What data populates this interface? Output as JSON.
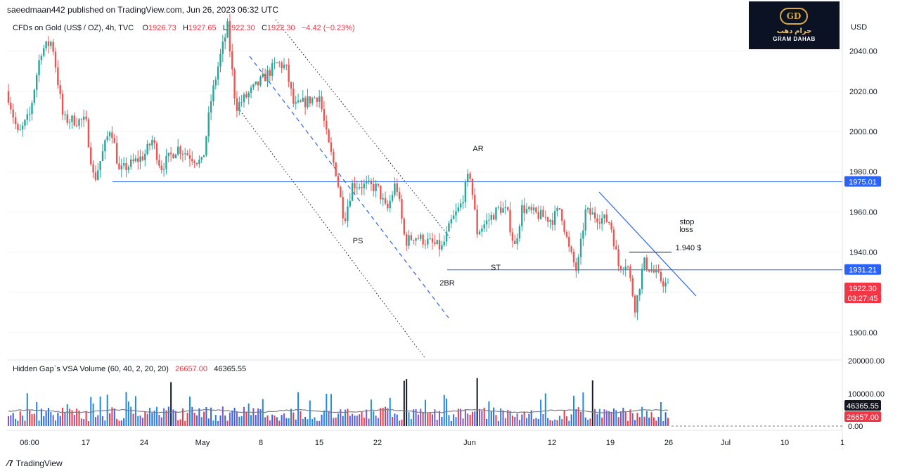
{
  "header": {
    "published": "saeedmaan442 published on TradingView.com, Jun 26, 2023 06:32 UTC"
  },
  "symbol_bar": {
    "name": "CFDs on Gold (US$ / OZ), 4h, TVC",
    "open_label": "O",
    "open": "1926.73",
    "high_label": "H",
    "high": "1927.65",
    "low_label": "L",
    "low": "1922.30",
    "close_label": "C",
    "close": "1922.30",
    "change": "−4.42 (−0.23%)"
  },
  "logo": {
    "emblem": "GD",
    "arabic_text": "جرام دهب",
    "english_text": "GRAM DAHAB"
  },
  "price_axis": {
    "currency": "USD",
    "ticks": [
      "2040.00",
      "2020.00",
      "2000.00",
      "1980.00",
      "1960.00",
      "1940.00",
      "1920.00",
      "1900.00"
    ],
    "tags": [
      {
        "value": "1975.01",
        "color": "#2962ff"
      },
      {
        "value": "1931.21",
        "color": "#2962ff"
      },
      {
        "value": "1922.30",
        "color": "#f23645"
      },
      {
        "value": "03:27:45",
        "color": "#f23645"
      }
    ]
  },
  "volume_panel": {
    "title": "Hidden Gap`s VSA Volume (60, 40, 2, 20, 20)",
    "value_1": "26657.00",
    "value_2": "46365.55",
    "axis_ticks": [
      "200000.00",
      "100000.00",
      "0.00"
    ],
    "tags": [
      {
        "value": "46365.55",
        "color": "#131722"
      },
      {
        "value": "26657.00",
        "color": "#f23645"
      }
    ]
  },
  "time_axis": {
    "labels": [
      "06:00",
      "17",
      "24",
      "May",
      "8",
      "15",
      "22",
      "Jun",
      "12",
      "19",
      "26",
      "Jul",
      "10",
      "1"
    ]
  },
  "annotations": {
    "AR": "AR",
    "PS": "PS",
    "ST": "ST",
    "BR": "2BR",
    "stop_loss_line1": "stop",
    "stop_loss_line2": "loss",
    "stop_price": "1.940 $"
  },
  "footer": {
    "brand": "TradingView"
  },
  "colors": {
    "up": "#26a69a",
    "down": "#ef5350",
    "hline": "#2962ff",
    "trend": "#2962ff",
    "vol_blue": "#2962ff",
    "vol_cyan": "#1e88e5",
    "vol_red": "#f23645",
    "vol_purple": "#7e57c2",
    "vol_black": "#131722",
    "vol_ma": "#787b86"
  },
  "chart_data": {
    "type": "candlestick",
    "title": "CFDs on Gold (US$ / OZ), 4h, TVC",
    "ylabel": "USD",
    "ylim": [
      1888,
      2050
    ],
    "key_levels": [
      1975.01,
      1931.21
    ],
    "stop_level": 1940,
    "waypoints": [
      {
        "x": "Apr 10",
        "y": 2020
      },
      {
        "x": "Apr 11",
        "y": 1998
      },
      {
        "x": "Apr 12",
        "y": 2008
      },
      {
        "x": "Apr 13",
        "y": 2040
      },
      {
        "x": "Apr 14",
        "y": 2045
      },
      {
        "x": "Apr 15",
        "y": 2006
      },
      {
        "x": "Apr 17",
        "y": 2005
      },
      {
        "x": "Apr 18",
        "y": 1975
      },
      {
        "x": "Apr 20",
        "y": 2003
      },
      {
        "x": "Apr 21",
        "y": 1980
      },
      {
        "x": "Apr 24",
        "y": 1988
      },
      {
        "x": "Apr 25",
        "y": 1996
      },
      {
        "x": "Apr 26",
        "y": 1982
      },
      {
        "x": "Apr 28",
        "y": 1992
      },
      {
        "x": "May 1",
        "y": 1984
      },
      {
        "x": "May 2",
        "y": 2015
      },
      {
        "x": "May 3",
        "y": 2035
      },
      {
        "x": "May 4",
        "y": 2052
      },
      {
        "x": "May 5",
        "y": 2012
      },
      {
        "x": "May 8",
        "y": 2025
      },
      {
        "x": "May 10",
        "y": 2034
      },
      {
        "x": "May 11",
        "y": 2032
      },
      {
        "x": "May 12",
        "y": 2012
      },
      {
        "x": "May 15",
        "y": 2018
      },
      {
        "x": "May 16",
        "y": 1995
      },
      {
        "x": "May 17",
        "y": 1980
      },
      {
        "x": "May 18",
        "y": 1956
      },
      {
        "x": "May 19",
        "y": 1974
      },
      {
        "x": "May 22",
        "y": 1972
      },
      {
        "x": "May 23",
        "y": 1960
      },
      {
        "x": "May 24",
        "y": 1975
      },
      {
        "x": "May 25",
        "y": 1945
      },
      {
        "x": "May 26",
        "y": 1948
      },
      {
        "x": "May 29",
        "y": 1942
      },
      {
        "x": "May 30",
        "y": 1955
      },
      {
        "x": "May 31",
        "y": 1963
      },
      {
        "x": "Jun 1",
        "y": 1980
      },
      {
        "x": "Jun 2",
        "y": 1950
      },
      {
        "x": "Jun 5",
        "y": 1962
      },
      {
        "x": "Jun 6",
        "y": 1960
      },
      {
        "x": "Jun 7",
        "y": 1942
      },
      {
        "x": "Jun 8",
        "y": 1962
      },
      {
        "x": "Jun 9",
        "y": 1960
      },
      {
        "x": "Jun 12",
        "y": 1956
      },
      {
        "x": "Jun 13",
        "y": 1962
      },
      {
        "x": "Jun 14",
        "y": 1942
      },
      {
        "x": "Jun 15",
        "y": 1930
      },
      {
        "x": "Jun 16",
        "y": 1960
      },
      {
        "x": "Jun 19",
        "y": 1955
      },
      {
        "x": "Jun 20",
        "y": 1933
      },
      {
        "x": "Jun 21",
        "y": 1935
      },
      {
        "x": "Jun 22",
        "y": 1912
      },
      {
        "x": "Jun 23",
        "y": 1935
      },
      {
        "x": "Jun 26",
        "y": 1922.3
      }
    ],
    "volume_ylim": [
      0,
      200000
    ],
    "volume_last": 26657.0,
    "volume_ma_last": 46365.55
  }
}
